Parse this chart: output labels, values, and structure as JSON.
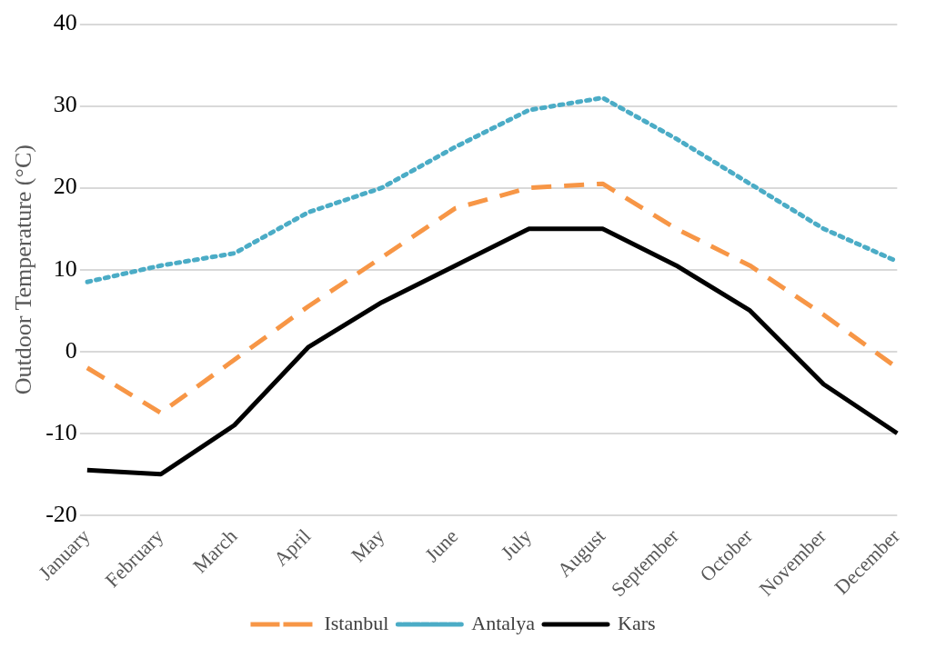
{
  "chart_data": {
    "type": "line",
    "ylabel": "Outdoor Temperature (°C)",
    "categories": [
      "January",
      "February",
      "March",
      "April",
      "May",
      "June",
      "July",
      "August",
      "September",
      "October",
      "November",
      "December"
    ],
    "series": [
      {
        "name": "Istanbul",
        "color": "#f79646",
        "line_style": "dashed",
        "values": [
          -2,
          -7.5,
          -1,
          5.5,
          11.5,
          17.5,
          20,
          20.5,
          15,
          10.5,
          4.5,
          -2
        ]
      },
      {
        "name": "Antalya",
        "color": "#4bacc6",
        "line_style": "dotted",
        "values": [
          8.5,
          10.5,
          12,
          17,
          20,
          25,
          29.5,
          31,
          26,
          20.5,
          15,
          11
        ]
      },
      {
        "name": "Kars",
        "color": "#000000",
        "line_style": "solid",
        "values": [
          -14.5,
          -15,
          -9,
          0.5,
          6,
          10.5,
          15,
          15,
          10.5,
          5,
          -4,
          -10
        ]
      }
    ],
    "ylim": [
      -20,
      40
    ],
    "yticks": [
      -20,
      -10,
      0,
      10,
      20,
      30,
      40
    ],
    "grid": "y",
    "legend": "bottom",
    "marker": "none"
  }
}
